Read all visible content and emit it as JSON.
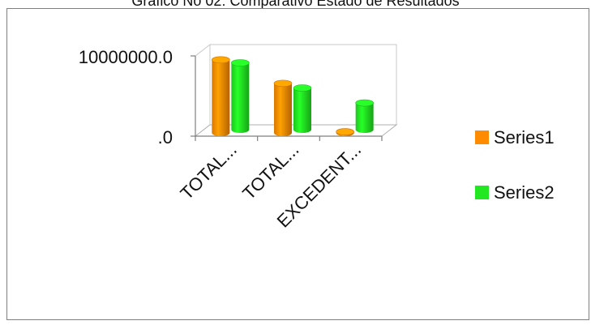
{
  "caption": "Grafico No 02: Comparativo Estado de Resultados",
  "chart_data": {
    "type": "bar",
    "style": "3d-cylinder",
    "categories": [
      "TOTAL...",
      "TOTAL...",
      "EXCEDENT..."
    ],
    "series": [
      {
        "name": "Series1",
        "color": "#ff8c00",
        "values": [
          9300000,
          6300000,
          150000
        ]
      },
      {
        "name": "Series2",
        "color": "#22e822",
        "values": [
          8500000,
          5300000,
          3400000
        ]
      }
    ],
    "y_ticks": [
      {
        "value": 0,
        "label": ".0"
      },
      {
        "value": 10000000,
        "label": "10000000.0"
      }
    ],
    "ylim": [
      0,
      10000000
    ],
    "legend_position": "right",
    "grid": false
  }
}
